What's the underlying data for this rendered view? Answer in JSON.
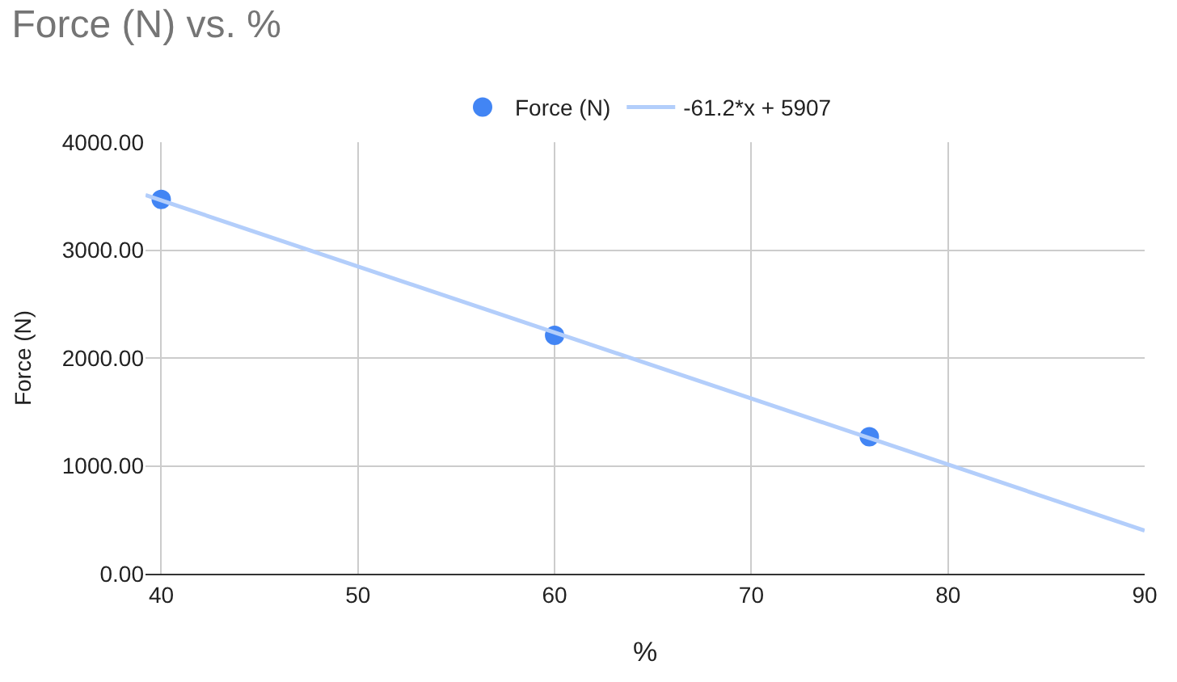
{
  "chart_data": {
    "type": "scatter",
    "title": "Force (N) vs. %",
    "xlabel": "%",
    "ylabel": "Force (N)",
    "series": [
      {
        "name": "Force (N)",
        "color": "#4285f4",
        "marker": "circle",
        "x": [
          40,
          60,
          76
        ],
        "values": [
          3470,
          2210,
          1270
        ]
      },
      {
        "name": "-61.2*x + 5907",
        "type": "line",
        "color": "#b3cefb",
        "x": [
          39.2,
          90
        ],
        "values": [
          3510,
          400
        ]
      }
    ],
    "xlim": [
      39.2,
      90
    ],
    "xticks": [
      40,
      50,
      60,
      70,
      80,
      90
    ],
    "ylim": [
      0,
      4000
    ],
    "yticks": [
      {
        "value": 0,
        "label": "0.00"
      },
      {
        "value": 1000,
        "label": "1000.00"
      },
      {
        "value": 2000,
        "label": "2000.00"
      },
      {
        "value": 3000,
        "label": "3000.00"
      },
      {
        "value": 4000,
        "label": "4000.00"
      }
    ],
    "grid": true,
    "legend": "top"
  }
}
